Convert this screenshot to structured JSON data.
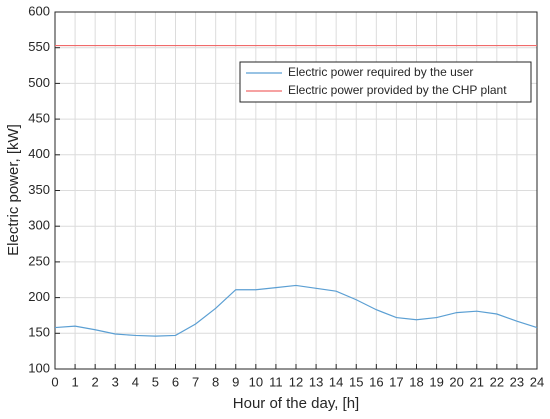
{
  "chart_data": {
    "type": "line",
    "x_label": "Hour of the day, [h]",
    "y_label": "Electric power, [kW]",
    "x": [
      0,
      1,
      2,
      3,
      4,
      5,
      6,
      7,
      8,
      9,
      10,
      11,
      12,
      13,
      14,
      15,
      16,
      17,
      18,
      19,
      20,
      21,
      22,
      23,
      24
    ],
    "series": [
      {
        "name": "Electric power required by the user",
        "color": "#5b9fd3",
        "values": [
          158,
          160,
          155,
          149,
          147,
          146,
          147,
          163,
          185,
          211,
          211,
          214,
          217,
          213,
          209,
          197,
          183,
          172,
          169,
          172,
          179,
          181,
          177,
          167,
          158
        ]
      },
      {
        "name": "Electric power provided by the CHP plant",
        "color": "#f06a6a",
        "values": [
          553,
          553,
          553,
          553,
          553,
          553,
          553,
          553,
          553,
          553,
          553,
          553,
          553,
          553,
          553,
          553,
          553,
          553,
          553,
          553,
          553,
          553,
          553,
          553,
          553
        ]
      }
    ],
    "xlim": [
      0,
      24
    ],
    "xticks": [
      0,
      1,
      2,
      3,
      4,
      5,
      6,
      7,
      8,
      9,
      10,
      11,
      12,
      13,
      14,
      15,
      16,
      17,
      18,
      19,
      20,
      21,
      22,
      23,
      24
    ],
    "ylim": [
      100,
      600
    ],
    "yticks": [
      100,
      150,
      200,
      250,
      300,
      350,
      400,
      450,
      500,
      550,
      600
    ],
    "grid": true,
    "legend": "upper-right"
  }
}
